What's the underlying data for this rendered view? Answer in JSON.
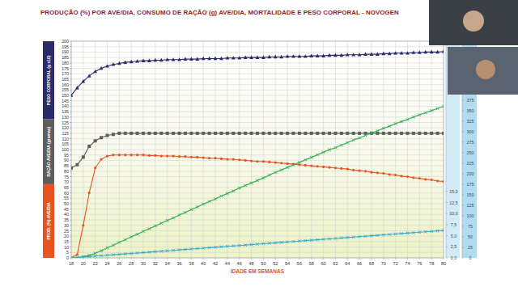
{
  "chart_data": {
    "type": "line",
    "title": "PRODUÇÃO (%) POR AVE/DIA, CONSUMO DE RAÇÃO (g) AVE/DIA, MORTALIDADE E PESO CORPORAL - NOVOGEN",
    "xlabel": "IDADE EM SEMANAS",
    "ylabels": [
      "PESO CORPORAL (g x10)",
      "RAÇÃO AVE/DIA (gramas)",
      "PROD. (%) AVE/DIA"
    ],
    "x": [
      18,
      19,
      20,
      21,
      22,
      23,
      24,
      25,
      26,
      27,
      28,
      29,
      30,
      31,
      32,
      33,
      34,
      35,
      36,
      37,
      38,
      39,
      40,
      41,
      42,
      43,
      44,
      45,
      46,
      47,
      48,
      49,
      50,
      51,
      52,
      53,
      54,
      55,
      56,
      57,
      58,
      59,
      60,
      61,
      62,
      63,
      64,
      65,
      66,
      67,
      68,
      69,
      70,
      71,
      72,
      73,
      74,
      75,
      76,
      77,
      78,
      79,
      80
    ],
    "xlim": [
      18,
      80
    ],
    "xticks": [
      18,
      20,
      22,
      24,
      26,
      28,
      30,
      32,
      34,
      36,
      38,
      40,
      42,
      44,
      46,
      48,
      50,
      52,
      54,
      56,
      58,
      60,
      62,
      64,
      66,
      68,
      70,
      72,
      74,
      76,
      78,
      80
    ],
    "ylim": [
      0,
      200
    ],
    "yticks": [
      0,
      5,
      10,
      15,
      20,
      25,
      30,
      35,
      40,
      45,
      50,
      55,
      60,
      65,
      70,
      75,
      80,
      85,
      90,
      95,
      100,
      105,
      110,
      115,
      120,
      125,
      130,
      135,
      140,
      145,
      150,
      155,
      160,
      165,
      170,
      175,
      180,
      185,
      190,
      195,
      200
    ],
    "y2lim": [
      0,
      515
    ],
    "y2ticks": [
      0,
      25,
      50,
      75,
      100,
      125,
      150,
      175,
      200,
      225,
      250,
      275,
      300,
      325,
      350,
      375
    ],
    "y3lim": [
      0,
      49
    ],
    "y3ticks": [
      {
        "value": 0,
        "label": "0,0"
      },
      {
        "value": 2.5,
        "label": "2,5"
      },
      {
        "value": 5,
        "label": "5,0"
      },
      {
        "value": 7.5,
        "label": "7,5"
      },
      {
        "value": 10,
        "label": "10,0"
      },
      {
        "value": 12.5,
        "label": "12,5"
      },
      {
        "value": 15,
        "label": "15,0"
      }
    ],
    "grid": true,
    "series": [
      {
        "color": "#2b2a6b",
        "marker": "triangle",
        "values": [
          150,
          157,
          163,
          168,
          172,
          175,
          177,
          178.5,
          179.5,
          180.5,
          181,
          181.5,
          182,
          182,
          182.5,
          182.5,
          183,
          183,
          183,
          183.5,
          183.5,
          183.5,
          184,
          184,
          184,
          184,
          184.5,
          184.5,
          184.5,
          185,
          185,
          185,
          185,
          185.5,
          185.5,
          185.5,
          186,
          186,
          186,
          186,
          186.5,
          186.5,
          186.5,
          187,
          187,
          187,
          187.5,
          187.5,
          187.5,
          188,
          188,
          188,
          188.5,
          188.5,
          189,
          189,
          189,
          189.5,
          189.5,
          190,
          190,
          190,
          190.5
        ]
      },
      {
        "color": "#5e5e5e",
        "marker": "square",
        "values": [
          83,
          86,
          93,
          103,
          108,
          111,
          113,
          114,
          115,
          115,
          115,
          115,
          115,
          115,
          115,
          115,
          115,
          115,
          115,
          115,
          115,
          115,
          115,
          115,
          115,
          115,
          115,
          115,
          115,
          115,
          115,
          115,
          115,
          115,
          115,
          115,
          115,
          115,
          115,
          115,
          115,
          115,
          115,
          115,
          115,
          115,
          115,
          115,
          115,
          115,
          115,
          115,
          115,
          115,
          115,
          115,
          115,
          115,
          115,
          115,
          115,
          115,
          115
        ]
      },
      {
        "color": "#e8531f",
        "marker": "circle",
        "values": [
          0,
          3,
          30,
          60,
          83,
          91,
          94,
          95,
          95,
          95,
          95,
          95,
          95,
          94.5,
          94.5,
          94,
          94,
          94,
          93.5,
          93.5,
          93,
          93,
          92.5,
          92,
          92,
          91.5,
          91,
          91,
          90.5,
          90,
          89.5,
          89,
          89,
          88.5,
          88,
          87.5,
          87,
          86.5,
          86,
          85.5,
          85,
          84.5,
          84,
          83.5,
          83,
          82.5,
          82,
          81,
          80.5,
          80,
          79,
          78.5,
          78,
          77,
          76.5,
          75.5,
          75,
          74,
          73.5,
          72.5,
          72,
          71,
          70.5
        ]
      },
      {
        "color": "#2fae55",
        "marker": "x",
        "axis": "y2",
        "values": [
          0,
          1,
          3,
          6,
          11,
          17,
          24,
          30,
          37,
          43,
          50,
          56,
          63,
          69,
          76,
          82,
          89,
          95,
          102,
          108,
          115,
          121,
          128,
          134,
          140,
          147,
          153,
          159,
          166,
          172,
          178,
          184,
          190,
          197,
          203,
          209,
          215,
          221,
          227,
          233,
          239,
          245,
          251,
          257,
          262,
          268,
          274,
          280,
          285,
          291,
          297,
          302,
          308,
          313,
          319,
          324,
          329,
          335,
          340,
          345,
          350,
          355,
          360
        ]
      },
      {
        "color": "#35a9c9",
        "marker": "x",
        "axis": "y3",
        "values": [
          0,
          0.1,
          0.2,
          0.3,
          0.4,
          0.5,
          0.6,
          0.7,
          0.8,
          0.9,
          1.0,
          1.1,
          1.2,
          1.3,
          1.4,
          1.5,
          1.6,
          1.7,
          1.8,
          1.9,
          2.0,
          2.1,
          2.2,
          2.3,
          2.4,
          2.5,
          2.6,
          2.7,
          2.8,
          2.9,
          3.0,
          3.1,
          3.2,
          3.3,
          3.4,
          3.5,
          3.6,
          3.7,
          3.8,
          3.9,
          4.0,
          4.1,
          4.2,
          4.3,
          4.4,
          4.5,
          4.6,
          4.7,
          4.8,
          4.9,
          5.0,
          5.1,
          5.2,
          5.3,
          5.4,
          5.5,
          5.6,
          5.7,
          5.8,
          5.9,
          6.0,
          6.1,
          6.2
        ]
      }
    ]
  }
}
